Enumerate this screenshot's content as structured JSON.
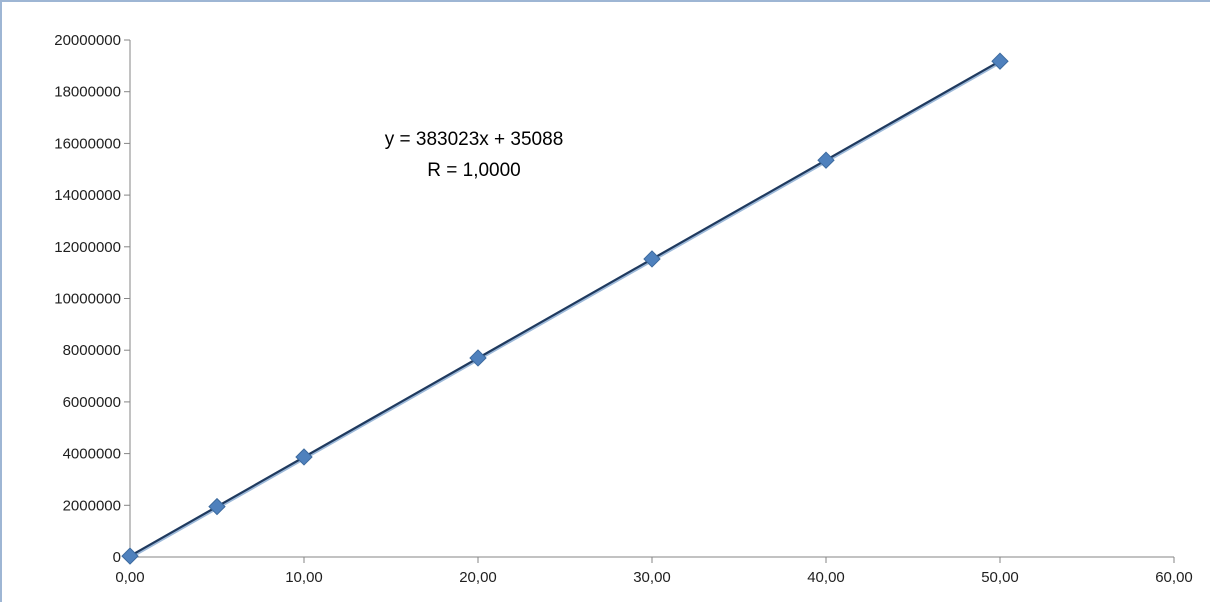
{
  "chart_data": {
    "type": "scatter",
    "title": "",
    "xlabel": "",
    "ylabel": "",
    "x_tick_labels": [
      "0,00",
      "10,00",
      "20,00",
      "30,00",
      "40,00",
      "50,00",
      "60,00"
    ],
    "x_ticks": [
      0,
      10,
      20,
      30,
      40,
      50,
      60
    ],
    "y_tick_labels": [
      "0",
      "2000000",
      "4000000",
      "6000000",
      "8000000",
      "10000000",
      "12000000",
      "14000000",
      "16000000",
      "18000000",
      "20000000"
    ],
    "y_ticks": [
      0,
      2000000,
      4000000,
      6000000,
      8000000,
      10000000,
      12000000,
      14000000,
      16000000,
      18000000,
      20000000
    ],
    "xlim": [
      0,
      60
    ],
    "ylim": [
      0,
      20000000
    ],
    "grid": false,
    "legend": "none",
    "series": [
      {
        "marker": "diamond",
        "color": "#4f81bd",
        "points": [
          {
            "x": 0,
            "y": 35088
          },
          {
            "x": 5,
            "y": 1950000
          },
          {
            "x": 10,
            "y": 3870000
          },
          {
            "x": 20,
            "y": 7700000
          },
          {
            "x": 30,
            "y": 11530000
          },
          {
            "x": 40,
            "y": 15350000
          },
          {
            "x": 50,
            "y": 19180000
          }
        ]
      }
    ],
    "trendline": {
      "type": "linear",
      "slope": 383023,
      "intercept": 35088,
      "x_range": [
        0,
        50
      ],
      "color": "#1f3a5f"
    },
    "annotations": [
      "y = 383023x + 35088",
      "R = 1,0000"
    ]
  }
}
